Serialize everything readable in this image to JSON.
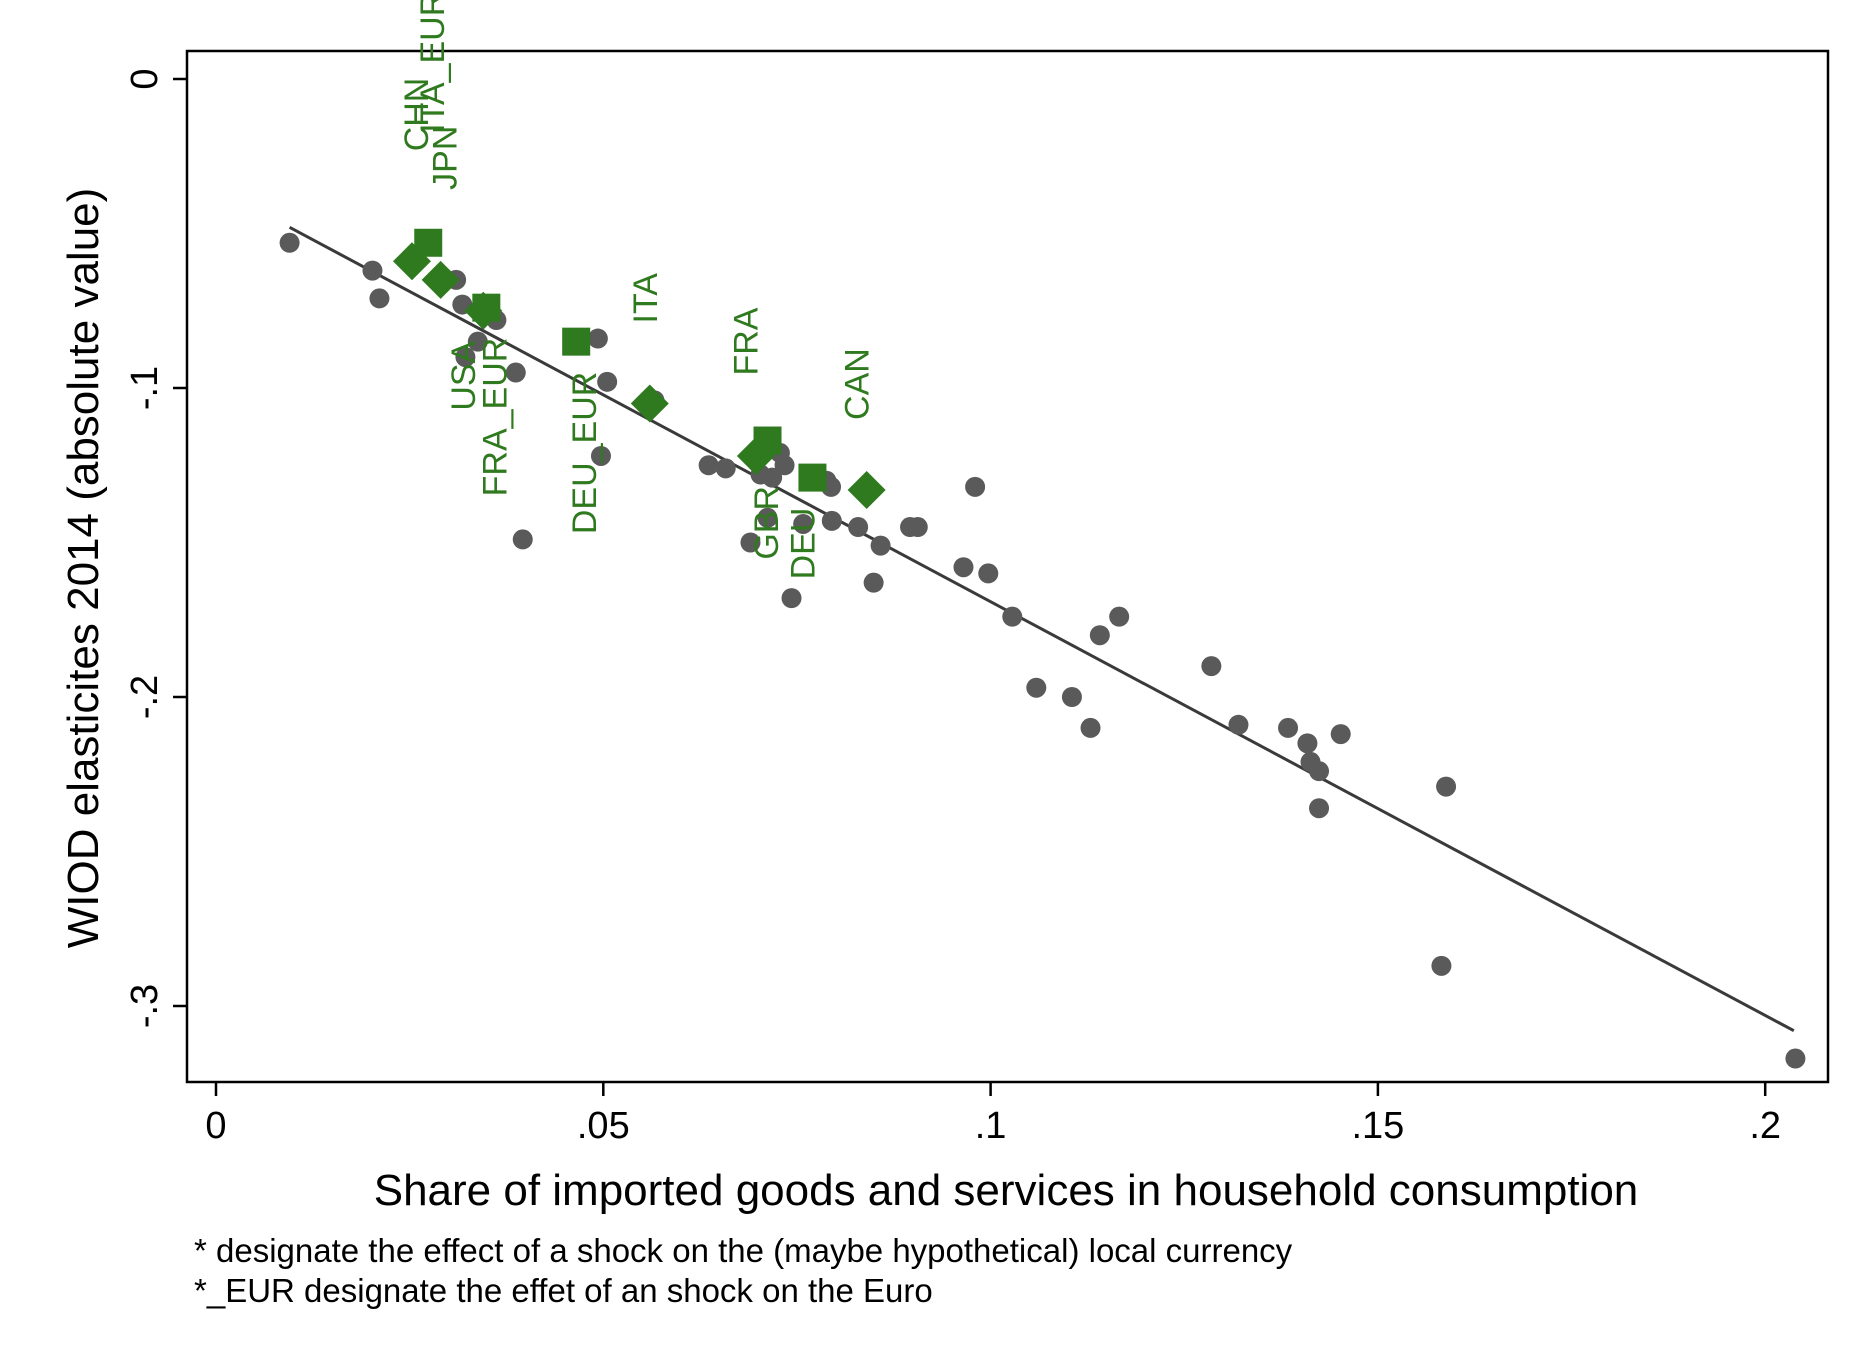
{
  "chart_data": {
    "type": "scatter",
    "title": "",
    "xlabel": "Share of imported goods and services in household consumption",
    "ylabel": "WIOD elasticites 2014 (absolute value)",
    "xlim": [
      -0.004,
      0.208
    ],
    "ylim": [
      -0.327,
      0.0
    ],
    "x_ticks": [
      0,
      0.05,
      0.1,
      0.15,
      0.2
    ],
    "x_tick_labels": [
      "0",
      ".05",
      ".1",
      ".15",
      ".2"
    ],
    "y_ticks": [
      0,
      -0.1,
      -0.2,
      -0.3
    ],
    "y_tick_labels": [
      "0",
      "-.1",
      "-.2",
      "-.3"
    ],
    "grid": false,
    "colors": {
      "other": "#5a5a5a",
      "highlight": "#2f7a1f",
      "fit": "#3a3a3a"
    },
    "series": [
      {
        "marker": "circle",
        "points": [
          {
            "x": 0.0095,
            "y": -0.053
          },
          {
            "x": 0.0202,
            "y": -0.062
          },
          {
            "x": 0.0211,
            "y": -0.071
          },
          {
            "x": 0.031,
            "y": -0.065
          },
          {
            "x": 0.0318,
            "y": -0.073
          },
          {
            "x": 0.0322,
            "y": -0.09
          },
          {
            "x": 0.0338,
            "y": -0.085
          },
          {
            "x": 0.0362,
            "y": -0.078
          },
          {
            "x": 0.0387,
            "y": -0.095
          },
          {
            "x": 0.0396,
            "y": -0.149
          },
          {
            "x": 0.0493,
            "y": -0.084
          },
          {
            "x": 0.0497,
            "y": -0.122
          },
          {
            "x": 0.0505,
            "y": -0.098
          },
          {
            "x": 0.0566,
            "y": -0.104
          },
          {
            "x": 0.0636,
            "y": -0.125
          },
          {
            "x": 0.0658,
            "y": -0.126
          },
          {
            "x": 0.069,
            "y": -0.15
          },
          {
            "x": 0.0703,
            "y": -0.128
          },
          {
            "x": 0.0712,
            "y": -0.142
          },
          {
            "x": 0.0718,
            "y": -0.129
          },
          {
            "x": 0.0728,
            "y": -0.121
          },
          {
            "x": 0.0734,
            "y": -0.125
          },
          {
            "x": 0.0743,
            "y": -0.168
          },
          {
            "x": 0.0758,
            "y": -0.144
          },
          {
            "x": 0.0788,
            "y": -0.13
          },
          {
            "x": 0.0794,
            "y": -0.132
          },
          {
            "x": 0.0795,
            "y": -0.143
          },
          {
            "x": 0.0829,
            "y": -0.145
          },
          {
            "x": 0.0849,
            "y": -0.163
          },
          {
            "x": 0.0858,
            "y": -0.151
          },
          {
            "x": 0.0896,
            "y": -0.145
          },
          {
            "x": 0.0906,
            "y": -0.145
          },
          {
            "x": 0.0965,
            "y": -0.158
          },
          {
            "x": 0.098,
            "y": -0.132
          },
          {
            "x": 0.0997,
            "y": -0.16
          },
          {
            "x": 0.1028,
            "y": -0.174
          },
          {
            "x": 0.1059,
            "y": -0.197
          },
          {
            "x": 0.1105,
            "y": -0.2
          },
          {
            "x": 0.1129,
            "y": -0.21
          },
          {
            "x": 0.1141,
            "y": -0.18
          },
          {
            "x": 0.1166,
            "y": -0.174
          },
          {
            "x": 0.1285,
            "y": -0.19
          },
          {
            "x": 0.132,
            "y": -0.209
          },
          {
            "x": 0.1384,
            "y": -0.21
          },
          {
            "x": 0.1409,
            "y": -0.215
          },
          {
            "x": 0.1413,
            "y": -0.221
          },
          {
            "x": 0.1424,
            "y": -0.224
          },
          {
            "x": 0.1424,
            "y": -0.236
          },
          {
            "x": 0.1452,
            "y": -0.212
          },
          {
            "x": 0.1582,
            "y": -0.287
          },
          {
            "x": 0.1588,
            "y": -0.229
          },
          {
            "x": 0.2039,
            "y": -0.317
          }
        ]
      },
      {
        "marker": "diamond",
        "points": [
          {
            "x": 0.0253,
            "y": -0.059,
            "label": "CHN"
          },
          {
            "x": 0.029,
            "y": -0.065,
            "label": "JPN"
          },
          {
            "x": 0.0345,
            "y": -0.075,
            "label": "USA"
          },
          {
            "x": 0.056,
            "y": -0.105,
            "label": "ITA"
          },
          {
            "x": 0.0697,
            "y": -0.122,
            "label": "GBR"
          },
          {
            "x": 0.084,
            "y": -0.133,
            "label": "CAN"
          }
        ]
      },
      {
        "marker": "square",
        "points": [
          {
            "x": 0.0274,
            "y": -0.053,
            "label": "ITA_EUR"
          },
          {
            "x": 0.0349,
            "y": -0.074,
            "label": "FRA_EUR"
          },
          {
            "x": 0.0465,
            "y": -0.085,
            "label": "DEU_EUR"
          },
          {
            "x": 0.0712,
            "y": -0.117,
            "label": "FRA"
          },
          {
            "x": 0.077,
            "y": -0.129,
            "label": "DEU"
          }
        ]
      }
    ],
    "fit_line": {
      "x": [
        0.0095,
        0.2037
      ],
      "y": [
        -0.048,
        -0.308
      ]
    },
    "notes": [
      "* designate the effect of a shock on the (maybe hypothetical) local currency",
      "*_EUR designate the effet of an shock on the Euro"
    ]
  }
}
